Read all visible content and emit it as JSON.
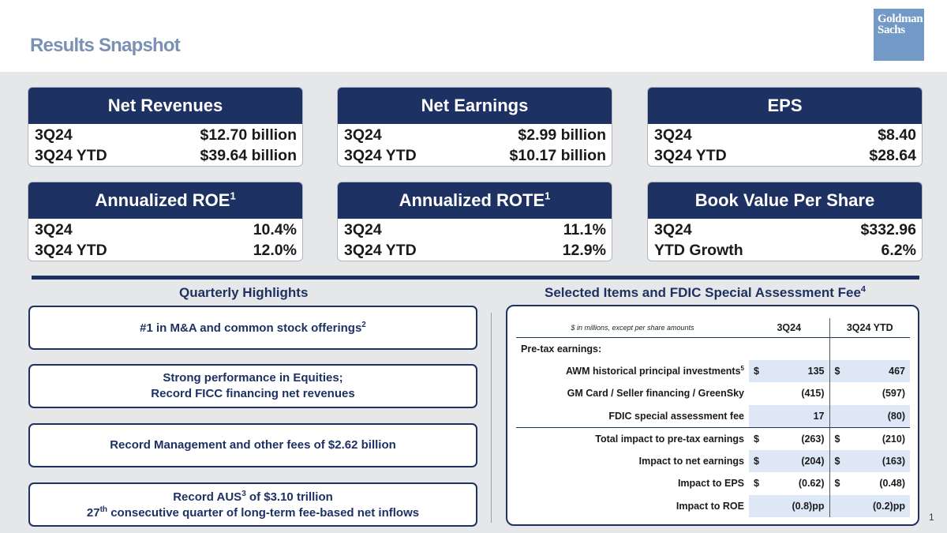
{
  "header": {
    "title": "Results Snapshot",
    "logo_line1": "Goldman",
    "logo_line2": "Sachs"
  },
  "kpis": [
    {
      "title": "Net Revenues",
      "sup": "",
      "rows": [
        {
          "label": "3Q24",
          "value": "$12.70 billion"
        },
        {
          "label": "3Q24 YTD",
          "value": "$39.64 billion"
        }
      ]
    },
    {
      "title": "Net Earnings",
      "sup": "",
      "rows": [
        {
          "label": "3Q24",
          "value": "$2.99 billion"
        },
        {
          "label": "3Q24 YTD",
          "value": "$10.17 billion"
        }
      ]
    },
    {
      "title": "EPS",
      "sup": "",
      "rows": [
        {
          "label": "3Q24",
          "value": "$8.40"
        },
        {
          "label": "3Q24 YTD",
          "value": "$28.64"
        }
      ]
    },
    {
      "title": "Annualized ROE",
      "sup": "1",
      "rows": [
        {
          "label": "3Q24",
          "value": "10.4%"
        },
        {
          "label": "3Q24 YTD",
          "value": "12.0%"
        }
      ]
    },
    {
      "title": "Annualized ROTE",
      "sup": "1",
      "rows": [
        {
          "label": "3Q24",
          "value": "11.1%"
        },
        {
          "label": "3Q24 YTD",
          "value": "12.9%"
        }
      ]
    },
    {
      "title": "Book Value Per Share",
      "sup": "",
      "rows": [
        {
          "label": "3Q24",
          "value": "$332.96"
        },
        {
          "label": "YTD Growth",
          "value": "6.2%"
        }
      ]
    }
  ],
  "highlights": {
    "title": "Quarterly Highlights",
    "h1": {
      "text": "#1 in M&A and common stock offerings",
      "sup": "2"
    },
    "h2": {
      "line1": "Strong performance in Equities;",
      "line2": "Record FICC financing net revenues"
    },
    "h3": {
      "text": "Record Management and other fees of $2.62 billion"
    },
    "h4": {
      "a": "Record AUS",
      "sup1": "3",
      "b": " of $3.10 trillion",
      "c": "27",
      "sup2": "th",
      "d": " consecutive quarter of long-term fee-based net inflows"
    }
  },
  "selected_items": {
    "title": "Selected Items and FDIC Special Assessment Fee",
    "title_sup": "4",
    "note": "$ in millions, except per share amounts",
    "col1": "3Q24",
    "col2": "3Q24 YTD",
    "section_label": "Pre-tax earnings:",
    "rows": [
      {
        "label": "AWM historical principal investments",
        "sup": "5",
        "cur1": "$",
        "v1": "135",
        "cur2": "$",
        "v2": "467"
      },
      {
        "label": "GM Card / Seller financing / GreenSky",
        "sup": "",
        "cur1": "",
        "v1": "(415)",
        "cur2": "",
        "v2": "(597)"
      },
      {
        "label": "FDIC special assessment fee",
        "sup": "",
        "cur1": "",
        "v1": "17",
        "cur2": "",
        "v2": "(80)"
      },
      {
        "label": "Total impact to pre-tax earnings",
        "sup": "",
        "cur1": "$",
        "v1": "(263)",
        "cur2": "$",
        "v2": "(210)"
      },
      {
        "label": "Impact to net earnings",
        "sup": "",
        "cur1": "$",
        "v1": "(204)",
        "cur2": "$",
        "v2": "(163)"
      },
      {
        "label": "Impact to EPS",
        "sup": "",
        "cur1": "$",
        "v1": "(0.62)",
        "cur2": "$",
        "v2": "(0.48)"
      },
      {
        "label": "Impact to ROE",
        "sup": "",
        "cur1": "",
        "v1": "(0.8)pp",
        "cur2": "",
        "v2": "(0.2)pp"
      }
    ]
  },
  "footer": {
    "page_number": "1"
  }
}
